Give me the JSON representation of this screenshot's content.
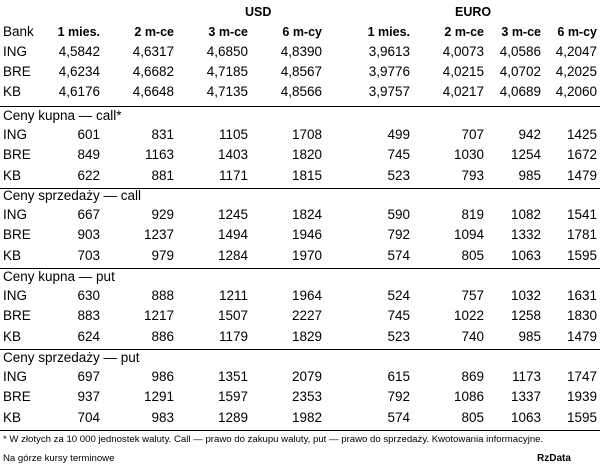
{
  "header": {
    "groups": [
      "USD",
      "EURO"
    ],
    "columns": [
      "Bank",
      "1 mies.",
      "2 m-ce",
      "3 m-ce",
      "6 m-cy",
      "1 mies.",
      "2 m-ce",
      "3 m-ce",
      "6 m-cy"
    ]
  },
  "rates": {
    "rows": [
      {
        "bank": "ING",
        "values": [
          "4,5842",
          "4,6317",
          "4,6850",
          "4,8390",
          "3,9613",
          "4,0073",
          "4,0586",
          "4,2047"
        ]
      },
      {
        "bank": "BRE",
        "values": [
          "4,6234",
          "4,6682",
          "4,7185",
          "4,8567",
          "3,9776",
          "4,0215",
          "4,0702",
          "4,2025"
        ]
      },
      {
        "bank": "KB",
        "values": [
          "4,6176",
          "4,6648",
          "4,7135",
          "4,8566",
          "3,9757",
          "4,0217",
          "4,0689",
          "4,2060"
        ]
      }
    ]
  },
  "sections": [
    {
      "title": "Ceny kupna — call*",
      "rows": [
        {
          "bank": "ING",
          "values": [
            "601",
            "831",
            "1105",
            "1708",
            "499",
            "707",
            "942",
            "1425"
          ]
        },
        {
          "bank": "BRE",
          "values": [
            "849",
            "1163",
            "1403",
            "1820",
            "745",
            "1030",
            "1254",
            "1672"
          ]
        },
        {
          "bank": "KB",
          "values": [
            "622",
            "881",
            "1171",
            "1815",
            "523",
            "793",
            "985",
            "1479"
          ]
        }
      ]
    },
    {
      "title": "Ceny sprzedaży — call",
      "rows": [
        {
          "bank": "ING",
          "values": [
            "667",
            "929",
            "1245",
            "1824",
            "590",
            "819",
            "1082",
            "1541"
          ]
        },
        {
          "bank": "BRE",
          "values": [
            "903",
            "1237",
            "1494",
            "1946",
            "792",
            "1094",
            "1332",
            "1781"
          ]
        },
        {
          "bank": "KB",
          "values": [
            "703",
            "979",
            "1284",
            "1970",
            "574",
            "805",
            "1063",
            "1595"
          ]
        }
      ]
    },
    {
      "title": "Ceny kupna — put",
      "rows": [
        {
          "bank": "ING",
          "values": [
            "630",
            "888",
            "1211",
            "1964",
            "524",
            "757",
            "1032",
            "1631"
          ]
        },
        {
          "bank": "BRE",
          "values": [
            "883",
            "1217",
            "1507",
            "2227",
            "745",
            "1022",
            "1258",
            "1830"
          ]
        },
        {
          "bank": "KB",
          "values": [
            "624",
            "886",
            "1179",
            "1829",
            "523",
            "740",
            "985",
            "1479"
          ]
        }
      ]
    },
    {
      "title": "Ceny sprzedaży — put",
      "rows": [
        {
          "bank": "ING",
          "values": [
            "697",
            "986",
            "1351",
            "2079",
            "615",
            "869",
            "1173",
            "1747"
          ]
        },
        {
          "bank": "BRE",
          "values": [
            "937",
            "1291",
            "1597",
            "2353",
            "792",
            "1086",
            "1337",
            "1939"
          ]
        },
        {
          "bank": "KB",
          "values": [
            "704",
            "983",
            "1289",
            "1982",
            "574",
            "805",
            "1063",
            "1595"
          ]
        }
      ]
    }
  ],
  "footnote": "* W złotych za 10 000 jednostek waluty. Call — prawo do zakupu waluty, put — prawo do sprzedaży. Kwotowania informacyjne.",
  "note": "Na górze kursy terminowe",
  "source": "RzData"
}
